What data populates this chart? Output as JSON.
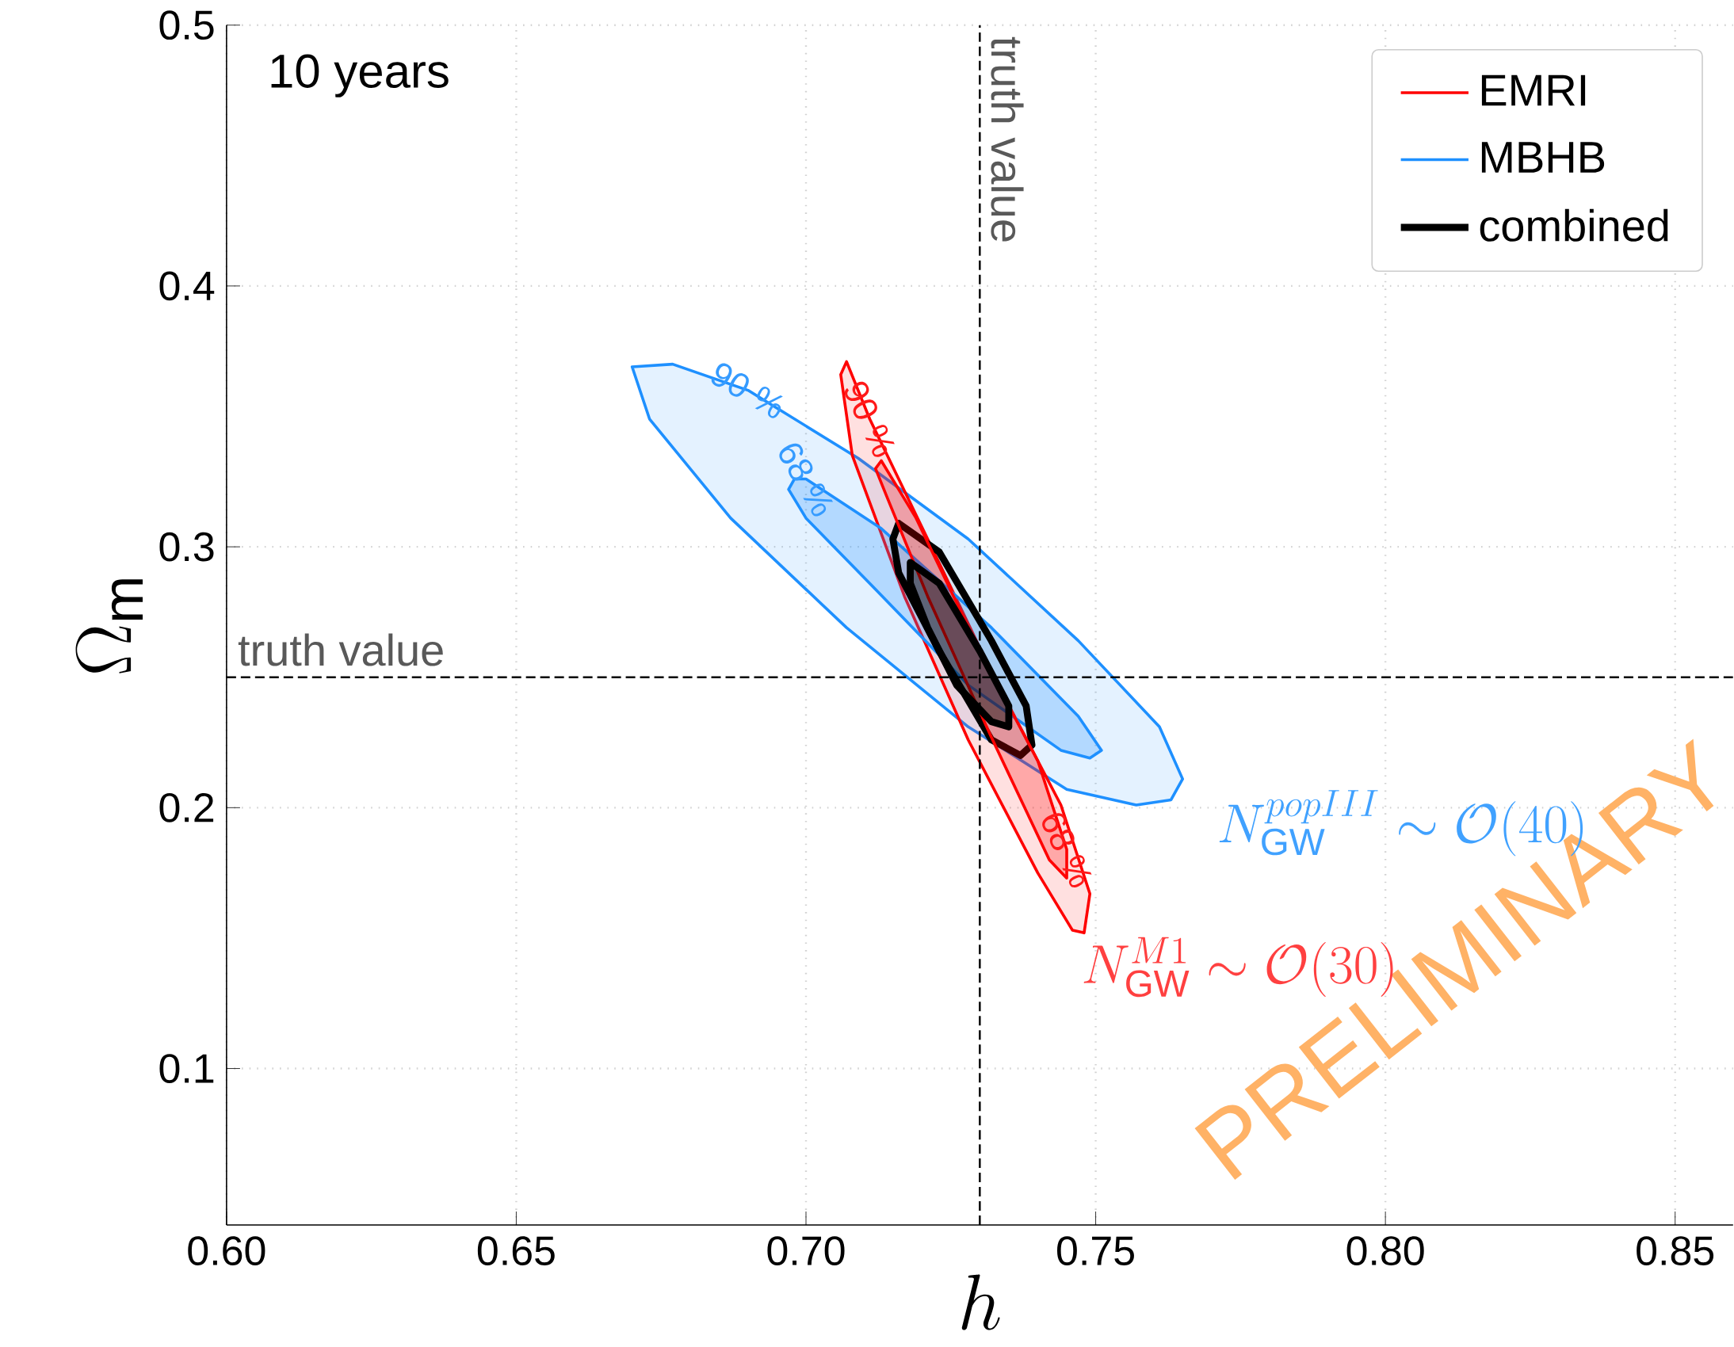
{
  "chart_data": {
    "type": "area",
    "xlabel": "h",
    "ylabel": "\\Omega_{\\rm m}",
    "xlim": [
      0.6,
      0.86
    ],
    "ylim": [
      0.04,
      0.5
    ],
    "xticks": [
      {
        "value": 0.6,
        "label": "0.60"
      },
      {
        "value": 0.65,
        "label": "0.65"
      },
      {
        "value": 0.7,
        "label": "0.70"
      },
      {
        "value": 0.75,
        "label": "0.75"
      },
      {
        "value": 0.8,
        "label": "0.80"
      },
      {
        "value": 0.85,
        "label": "0.85"
      }
    ],
    "yticks": [
      0.1,
      0.2,
      0.3,
      0.4,
      0.5
    ],
    "grid": true,
    "legend": "top right",
    "series": [
      {
        "name": "EMRI",
        "color": "#ff0000",
        "x": [
          0.707,
          0.711,
          0.721,
          0.732,
          0.744,
          0.749,
          0.748,
          0.746,
          0.74,
          0.728,
          0.717,
          0.708,
          0.706,
          0.707
        ],
        "values": [
          0.371,
          0.349,
          0.303,
          0.252,
          0.201,
          0.167,
          0.152,
          0.153,
          0.175,
          0.226,
          0.281,
          0.335,
          0.366,
          0.371
        ]
      },
      {
        "color": "#ff0000",
        "x": [
          0.713,
          0.719,
          0.73,
          0.74,
          0.745,
          0.745,
          0.742,
          0.732,
          0.721,
          0.714,
          0.712,
          0.713
        ],
        "values": [
          0.333,
          0.311,
          0.26,
          0.218,
          0.184,
          0.173,
          0.18,
          0.227,
          0.281,
          0.319,
          0.33,
          0.333
        ]
      },
      {
        "name": "MBHB",
        "color": "#1e90ff",
        "x": [
          0.67,
          0.677,
          0.69,
          0.709,
          0.728,
          0.747,
          0.761,
          0.765,
          0.763,
          0.757,
          0.745,
          0.728,
          0.707,
          0.687,
          0.673,
          0.67
        ],
        "values": [
          0.369,
          0.37,
          0.36,
          0.334,
          0.303,
          0.264,
          0.231,
          0.211,
          0.203,
          0.201,
          0.207,
          0.231,
          0.269,
          0.311,
          0.349,
          0.369
        ]
      },
      {
        "color": "#1e90ff",
        "x": [
          0.698,
          0.7,
          0.713,
          0.732,
          0.747,
          0.751,
          0.749,
          0.744,
          0.728,
          0.711,
          0.7,
          0.697,
          0.698
        ],
        "values": [
          0.326,
          0.326,
          0.307,
          0.269,
          0.235,
          0.222,
          0.219,
          0.222,
          0.247,
          0.286,
          0.311,
          0.322,
          0.326
        ]
      },
      {
        "name": "combined",
        "color": "#000000",
        "x": [
          0.716,
          0.723,
          0.732,
          0.738,
          0.739,
          0.737,
          0.732,
          0.723,
          0.716,
          0.715,
          0.716
        ],
        "values": [
          0.309,
          0.298,
          0.264,
          0.239,
          0.224,
          0.22,
          0.226,
          0.26,
          0.29,
          0.303,
          0.309
        ]
      },
      {
        "color": "#000000",
        "x": [
          0.718,
          0.723,
          0.73,
          0.735,
          0.735,
          0.732,
          0.726,
          0.721,
          0.718,
          0.718
        ],
        "values": [
          0.294,
          0.286,
          0.26,
          0.239,
          0.231,
          0.233,
          0.247,
          0.269,
          0.286,
          0.294
        ]
      }
    ],
    "ref_lines": [
      {
        "axis": "x",
        "value": 0.73,
        "label": "truth value",
        "line_style": "dashed"
      },
      {
        "axis": "y",
        "value": 0.25,
        "label": "truth value",
        "line_style": "dashed"
      }
    ],
    "annotations": [
      "10 years",
      "PRELIMINARY",
      "N_{\\rm GW}^{popIII}\\sim\\mathcal{O}(40)",
      "N_{\\rm GW}^{M1}\\sim\\mathcal{O}(30)",
      {
        "text": "90 %",
        "x": 0.69,
        "y": 0.36
      },
      {
        "text": "68 %",
        "x": 0.7,
        "y": 0.326
      },
      {
        "text": "90 %",
        "x": 0.711,
        "y": 0.349
      },
      {
        "text": "68 %",
        "x": 0.745,
        "y": 0.184
      }
    ]
  }
}
